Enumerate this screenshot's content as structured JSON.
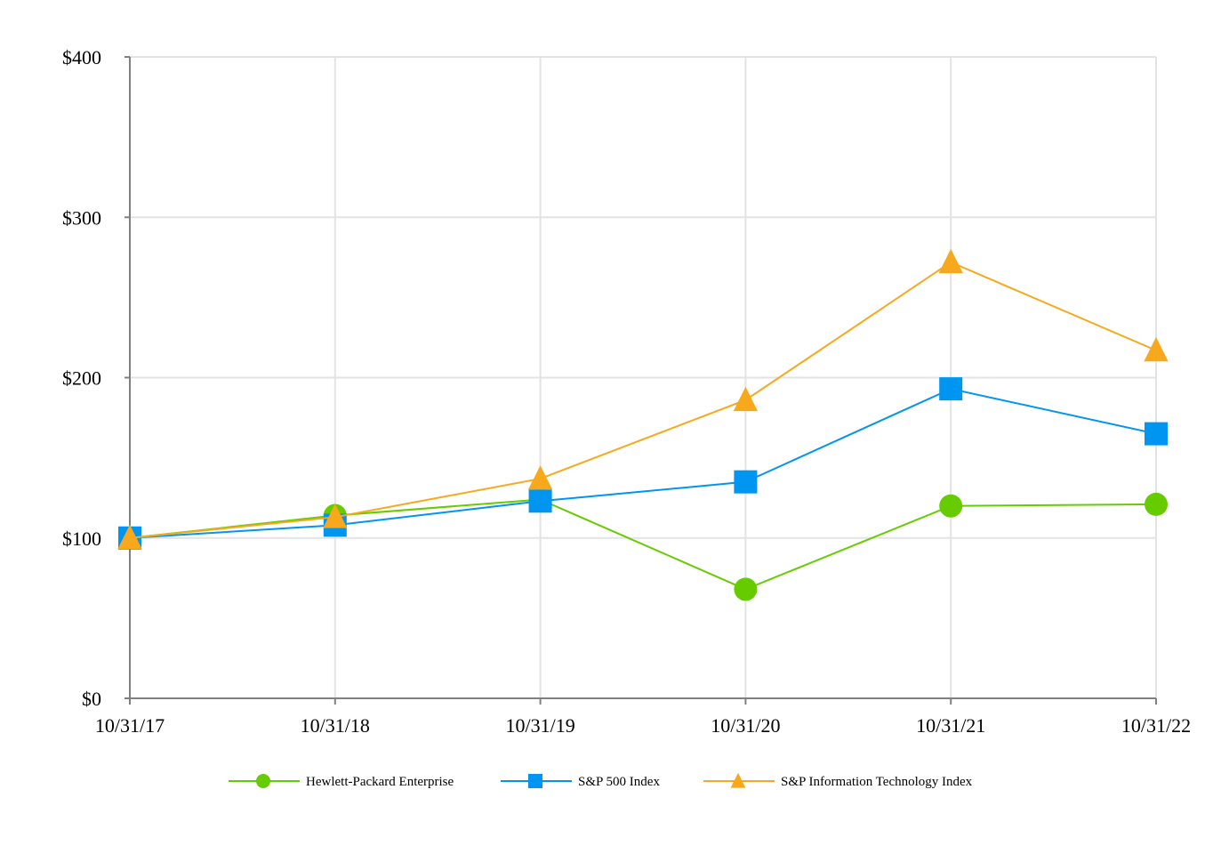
{
  "chart_data": {
    "type": "line",
    "title": "",
    "xlabel": "",
    "ylabel": "",
    "categories": [
      "10/31/17",
      "10/31/18",
      "10/31/19",
      "10/31/20",
      "10/31/21",
      "10/31/22"
    ],
    "ylim": [
      0,
      400
    ],
    "yticks": [
      0,
      100,
      200,
      300,
      400
    ],
    "ytick_labels": [
      "$0",
      "$100",
      "$200",
      "$300",
      "$400"
    ],
    "grid": true,
    "legend_position": "bottom",
    "series": [
      {
        "name": "Hewlett-Packard Enterprise",
        "marker": "circle",
        "color": "#66cc00",
        "values": [
          100,
          114,
          124,
          68,
          120,
          121
        ]
      },
      {
        "name": "S&P 500 Index",
        "marker": "square",
        "color": "#0095f0",
        "values": [
          100,
          108,
          123,
          135,
          193,
          165
        ]
      },
      {
        "name": "S&P Information Technology Index",
        "marker": "triangle",
        "color": "#f7a81c",
        "values": [
          100,
          113,
          137,
          186,
          272,
          217
        ]
      }
    ]
  }
}
